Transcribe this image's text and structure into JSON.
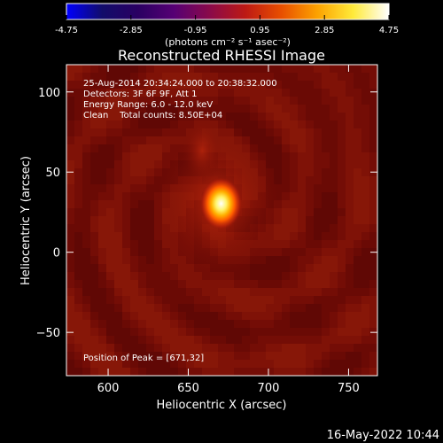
{
  "colorbar": {
    "min": -4.75,
    "max": 4.75,
    "tick_labels": [
      "-4.75",
      "-2.85",
      "-0.95",
      "0.95",
      "2.85",
      "4.75"
    ],
    "tick_values": [
      -4.75,
      -2.85,
      -0.95,
      0.95,
      2.85,
      4.75
    ],
    "unit_label": "(photons cm⁻² s⁻¹ asec⁻²)",
    "colormap": [
      "#0000ff",
      "#120c6a",
      "#2a0062",
      "#560074",
      "#8a0a4a",
      "#bd1a14",
      "#e84f00",
      "#fca200",
      "#ffea3a",
      "#ffffff"
    ]
  },
  "chart_data": {
    "type": "heatmap",
    "title": "Reconstructed RHESSI Image",
    "annotations": [
      "25-Aug-2014 20:34:24.000 to 20:38:32.000",
      "Detectors: 3F 6F 9F, Att 1",
      "Energy Range: 6.0 - 12.0 keV",
      "Clean    Total counts: 8.50E+04"
    ],
    "peak_label": "Position of Peak = [671,32]",
    "peak": {
      "x": 671,
      "y": 32
    },
    "xlabel": "Heliocentric X (arcsec)",
    "ylabel": "Heliocentric Y (arcsec)",
    "xlim": [
      574,
      768
    ],
    "ylim": [
      -77,
      117
    ],
    "x_ticks": [
      600,
      650,
      700,
      750
    ],
    "y_ticks": [
      -50,
      0,
      50,
      100
    ],
    "x_tick_labels": [
      "600",
      "650",
      "700",
      "750"
    ],
    "y_tick_labels": [
      "−50",
      "0",
      "50",
      "100"
    ],
    "background_color": "#6e0a06"
  },
  "footer": {
    "timestamp": "16-May-2022 10:44"
  }
}
